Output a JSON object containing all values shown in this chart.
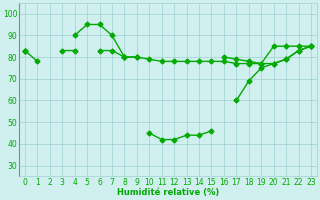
{
  "x": [
    0,
    1,
    2,
    3,
    4,
    5,
    6,
    7,
    8,
    9,
    10,
    11,
    12,
    13,
    14,
    15,
    16,
    17,
    18,
    19,
    20,
    21,
    22,
    23
  ],
  "line1": [
    83,
    78,
    null,
    null,
    90,
    95,
    95,
    90,
    80,
    null,
    45,
    42,
    42,
    44,
    44,
    46,
    null,
    60,
    69,
    75,
    77,
    79,
    83,
    85
  ],
  "line2": [
    83,
    null,
    null,
    83,
    83,
    null,
    83,
    83,
    80,
    80,
    null,
    null,
    null,
    null,
    null,
    null,
    80,
    79,
    78,
    77,
    77,
    79,
    83,
    85
  ],
  "line3": [
    83,
    null,
    null,
    null,
    null,
    null,
    null,
    null,
    80,
    80,
    79,
    78,
    78,
    78,
    78,
    78,
    78,
    77,
    77,
    77,
    85,
    85,
    85,
    85
  ],
  "background_color": "#d0f0f0",
  "grid_color": "#a0d0d0",
  "line_color": "#00aa00",
  "xlabel": "Humidité relative (%)",
  "ylim": [
    25,
    105
  ],
  "xlim": [
    -0.5,
    23.5
  ],
  "yticks": [
    30,
    40,
    50,
    60,
    70,
    80,
    90,
    100
  ],
  "xticks": [
    0,
    1,
    2,
    3,
    4,
    5,
    6,
    7,
    8,
    9,
    10,
    11,
    12,
    13,
    14,
    15,
    16,
    17,
    18,
    19,
    20,
    21,
    22,
    23
  ]
}
